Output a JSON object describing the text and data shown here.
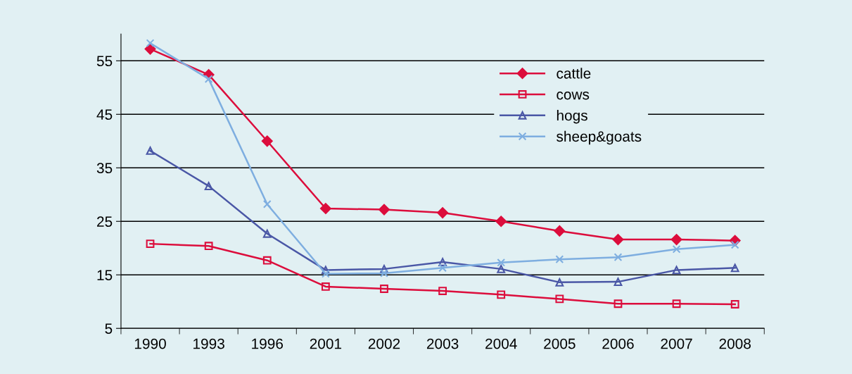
{
  "chart_data": {
    "type": "line",
    "categories": [
      "1990",
      "1993",
      "1996",
      "2001",
      "2002",
      "2003",
      "2004",
      "2005",
      "2006",
      "2007",
      "2008"
    ],
    "series": [
      {
        "name": "cattle",
        "color": "#dc0d3c",
        "marker": "diamond",
        "values": [
          57.2,
          52.4,
          40,
          27.4,
          27.2,
          26.6,
          25,
          23.2,
          21.6,
          21.6,
          21.4
        ]
      },
      {
        "name": "cows",
        "color": "#dc0d3c",
        "marker": "square",
        "values": [
          20.8,
          20.4,
          17.7,
          12.8,
          12.4,
          12,
          11.3,
          10.5,
          9.6,
          9.6,
          9.5
        ]
      },
      {
        "name": "hogs",
        "color": "#4a57a6",
        "marker": "triangle",
        "values": [
          38.2,
          31.6,
          22.7,
          15.9,
          16.1,
          17.4,
          16.1,
          13.6,
          13.7,
          15.9,
          16.3
        ]
      },
      {
        "name": "sheep&goats",
        "color": "#7eaee0",
        "marker": "cross",
        "values": [
          58.3,
          51.6,
          28.2,
          15.2,
          15.3,
          16.3,
          17.3,
          17.9,
          18.3,
          19.8,
          20.6
        ]
      }
    ],
    "ylim": [
      5,
      60
    ],
    "yticks": [
      5,
      15,
      25,
      35,
      45,
      55
    ],
    "grid": "y",
    "legend": "top right"
  }
}
